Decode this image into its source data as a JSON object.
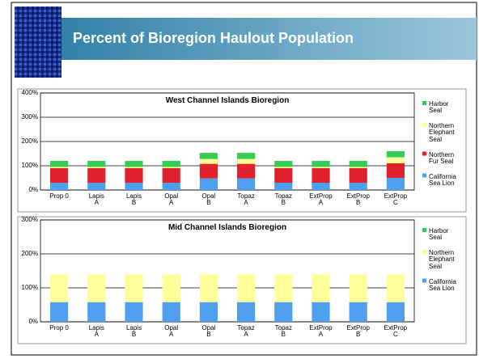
{
  "header": {
    "title": "Percent of Bioregion Haulout Population"
  },
  "chart_data": [
    {
      "type": "bar",
      "stacked": true,
      "title": "West Channel Islands Bioregion",
      "categories": [
        "Prop 0",
        "Lapis\nA",
        "Lapis\nB",
        "Opal\nA",
        "Opal\nB",
        "Topaz\nA",
        "Topaz\nB",
        "ExtProp\nA",
        "ExtProp\nB",
        "ExtProp\nC"
      ],
      "series": [
        {
          "name": "California\nSea Lion",
          "color": "#4f9ff0",
          "values": [
            30,
            30,
            30,
            30,
            48,
            48,
            30,
            30,
            30,
            50
          ]
        },
        {
          "name": "Northern\nFur Seal",
          "color": "#e0202a",
          "values": [
            60,
            60,
            60,
            60,
            60,
            60,
            60,
            60,
            60,
            60
          ]
        },
        {
          "name": "Northern\nElephant\nSeal",
          "color": "#ffff99",
          "values": [
            5,
            5,
            5,
            5,
            20,
            20,
            5,
            5,
            5,
            25
          ]
        },
        {
          "name": "Harbor\nSeal",
          "color": "#33cc55",
          "values": [
            25,
            25,
            25,
            25,
            25,
            25,
            25,
            25,
            25,
            25
          ]
        }
      ],
      "ylim": [
        0,
        400
      ],
      "yticks": [
        {
          "value": 0,
          "label": "0%"
        },
        {
          "value": 100,
          "label": "100%"
        },
        {
          "value": 200,
          "label": "200%"
        },
        {
          "value": 300,
          "label": "300%"
        },
        {
          "value": 400,
          "label": "400%"
        }
      ],
      "grid": true,
      "legend": "right"
    },
    {
      "type": "bar",
      "stacked": true,
      "title": "Mid Channel Islands Bioregion",
      "categories": [
        "Prop 0",
        "Lapis\nA",
        "Lapis\nB",
        "Opal\nA",
        "Opal\nB",
        "Topaz\nA",
        "Topaz\nB",
        "ExtProp\nA",
        "ExtProp\nB",
        "ExtProp\nC"
      ],
      "series": [
        {
          "name": "California\nSea Lion",
          "color": "#4f9ff0",
          "values": [
            58,
            58,
            58,
            58,
            58,
            58,
            58,
            58,
            58,
            58
          ]
        },
        {
          "name": "Northern\nElephant\nSeal",
          "color": "#ffff99",
          "values": [
            82,
            82,
            82,
            82,
            82,
            82,
            82,
            82,
            82,
            82
          ]
        },
        {
          "name": "Harbor\nSeal",
          "color": "#33cc55",
          "values": [
            0,
            0,
            0,
            0,
            0,
            0,
            0,
            0,
            0,
            0
          ]
        }
      ],
      "ylim": [
        0,
        300
      ],
      "yticks": [
        {
          "value": 0,
          "label": "0%"
        },
        {
          "value": 100,
          "label": "100%"
        },
        {
          "value": 200,
          "label": "200%"
        },
        {
          "value": 300,
          "label": "300%"
        }
      ],
      "grid": true,
      "legend": "right"
    }
  ]
}
